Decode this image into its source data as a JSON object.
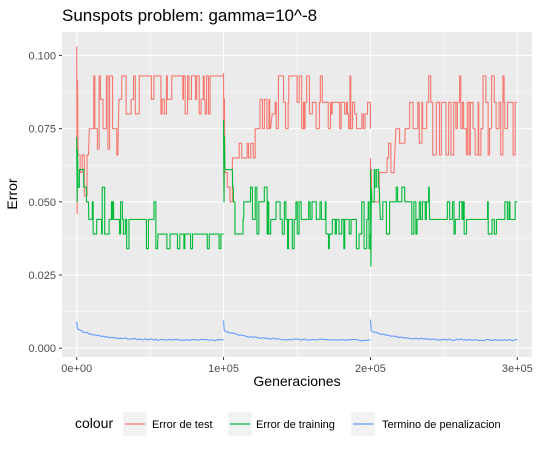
{
  "chart_data": {
    "type": "line",
    "title": "Sunspots problem: gamma=10^-8",
    "xlabel": "Generaciones",
    "ylabel": "Error",
    "xlim": [
      -10000,
      310000
    ],
    "ylim": [
      -0.003,
      0.108
    ],
    "x_ticks": [
      0,
      100000,
      200000,
      300000
    ],
    "x_tick_labels": [
      "0e+00",
      "1e+05",
      "2e+05",
      "3e+05"
    ],
    "y_ticks": [
      0.0,
      0.025,
      0.05,
      0.075,
      0.1
    ],
    "y_tick_labels": [
      "0.000",
      "0.025",
      "0.050",
      "0.075",
      "0.100"
    ],
    "grid": true,
    "legend": {
      "title": "colour",
      "position": "bottom"
    },
    "series": [
      {
        "name": "Error de test",
        "color": "#F8766D",
        "segments": [
          {
            "start": 0,
            "end": 100000,
            "initial_max": 0.103,
            "initial_min": 0.046,
            "phases": [
              {
                "x0": 0,
                "x1": 8000,
                "levels": [
                  0.066,
                  0.046,
                  0.06,
                  0.052
                ]
              },
              {
                "x0": 8000,
                "x1": 28000,
                "levels": [
                  0.075,
                  0.068,
                  0.085,
                  0.066,
                  0.093
                ]
              },
              {
                "x0": 28000,
                "x1": 100000,
                "levels": [
                  0.093,
                  0.085,
                  0.08,
                  0.093
                ]
              }
            ]
          },
          {
            "start": 100000,
            "end": 200000,
            "initial_max": 0.094,
            "initial_min": 0.05,
            "phases": [
              {
                "x0": 100000,
                "x1": 106000,
                "levels": [
                  0.055,
                  0.05,
                  0.06
                ]
              },
              {
                "x0": 106000,
                "x1": 122000,
                "levels": [
                  0.065,
                  0.075,
                  0.07
                ]
              },
              {
                "x0": 122000,
                "x1": 132000,
                "levels": [
                  0.075,
                  0.085,
                  0.07
                ]
              },
              {
                "x0": 132000,
                "x1": 200000,
                "levels": [
                  0.084,
                  0.075,
                  0.093,
                  0.08
                ]
              }
            ]
          },
          {
            "start": 200000,
            "end": 300000,
            "initial_max": 0.065,
            "initial_min": 0.046,
            "phases": [
              {
                "x0": 200000,
                "x1": 206000,
                "levels": [
                  0.05,
                  0.046,
                  0.056
                ]
              },
              {
                "x0": 206000,
                "x1": 216000,
                "levels": [
                  0.06,
                  0.065,
                  0.07
                ]
              },
              {
                "x0": 216000,
                "x1": 236000,
                "levels": [
                  0.075,
                  0.084,
                  0.07
                ]
              },
              {
                "x0": 236000,
                "x1": 300000,
                "levels": [
                  0.084,
                  0.075,
                  0.093,
                  0.066
                ]
              }
            ]
          }
        ]
      },
      {
        "name": "Error de training",
        "color": "#00BA38",
        "segments": [
          {
            "start": 0,
            "end": 100000,
            "initial_max": 0.072,
            "initial_min": 0.05,
            "phases": [
              {
                "x0": 0,
                "x1": 8000,
                "levels": [
                  0.061,
                  0.055,
                  0.05
                ]
              },
              {
                "x0": 8000,
                "x1": 28000,
                "levels": [
                  0.044,
                  0.05,
                  0.039,
                  0.055
                ]
              },
              {
                "x0": 28000,
                "x1": 55000,
                "levels": [
                  0.044,
                  0.039,
                  0.05,
                  0.034
                ]
              },
              {
                "x0": 55000,
                "x1": 100000,
                "levels": [
                  0.039,
                  0.034,
                  0.039
                ]
              }
            ]
          },
          {
            "start": 100000,
            "end": 200000,
            "initial_max": 0.078,
            "initial_min": 0.05,
            "phases": [
              {
                "x0": 100000,
                "x1": 106000,
                "levels": [
                  0.061,
                  0.055,
                  0.05
                ]
              },
              {
                "x0": 106000,
                "x1": 130000,
                "levels": [
                  0.05,
                  0.044,
                  0.055,
                  0.039
                ]
              },
              {
                "x0": 130000,
                "x1": 200000,
                "levels": [
                  0.044,
                  0.039,
                  0.05,
                  0.034
                ]
              }
            ]
          },
          {
            "start": 200000,
            "end": 300000,
            "initial_max": 0.061,
            "initial_min": 0.028,
            "phases": [
              {
                "x0": 200000,
                "x1": 206000,
                "levels": [
                  0.061,
                  0.05,
                  0.055
                ]
              },
              {
                "x0": 206000,
                "x1": 240000,
                "levels": [
                  0.05,
                  0.044,
                  0.055,
                  0.039
                ]
              },
              {
                "x0": 240000,
                "x1": 300000,
                "levels": [
                  0.044,
                  0.039,
                  0.05
                ]
              }
            ]
          }
        ]
      },
      {
        "name": "Termino de penalizacion",
        "color": "#619CFF",
        "segments": [
          {
            "start": 0,
            "end": 100000,
            "initial_max": 0.009,
            "initial_min": 0.0065,
            "plateau": 0.0028
          },
          {
            "start": 100000,
            "end": 200000,
            "initial_max": 0.0095,
            "initial_min": 0.006,
            "plateau": 0.0028
          },
          {
            "start": 200000,
            "end": 300000,
            "initial_max": 0.0098,
            "initial_min": 0.006,
            "plateau": 0.0028
          }
        ]
      }
    ]
  }
}
